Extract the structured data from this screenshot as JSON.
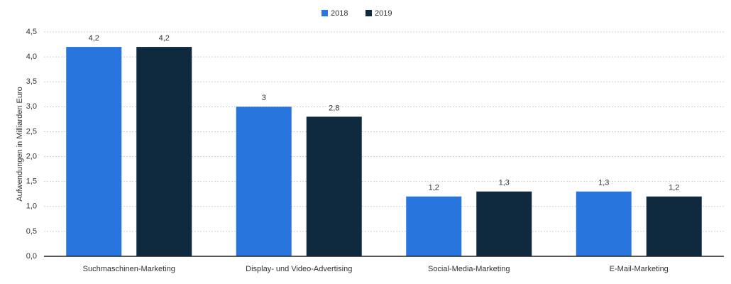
{
  "chart_data": {
    "type": "bar",
    "y_label": "Aufwendungen in Milliarden Euro",
    "categories": [
      "Suchmaschinen-Marketing",
      "Display- und Video-Advertising",
      "Social-Media-Marketing",
      "E-Mail-Marketing"
    ],
    "series": [
      {
        "name": "2018",
        "color": "#2876dd",
        "values": [
          4.2,
          3,
          1.2,
          1.3
        ],
        "value_labels": [
          "4,2",
          "3",
          "1,2",
          "1,3"
        ]
      },
      {
        "name": "2019",
        "color": "#0f2a3f",
        "values": [
          4.2,
          2.8,
          1.3,
          1.2
        ],
        "value_labels": [
          "4,2",
          "2,8",
          "1,3",
          "1,2"
        ]
      }
    ],
    "ylim": [
      0,
      4.5
    ],
    "yticks": [
      {
        "value": 0,
        "label": "0,0"
      },
      {
        "value": 0.5,
        "label": "0,5"
      },
      {
        "value": 1,
        "label": "1,0"
      },
      {
        "value": 1.5,
        "label": "1,5"
      },
      {
        "value": 2,
        "label": "2,0"
      },
      {
        "value": 2.5,
        "label": "2,5"
      },
      {
        "value": 3,
        "label": "3,0"
      },
      {
        "value": 3.5,
        "label": "3,5"
      },
      {
        "value": 4,
        "label": "4,0"
      },
      {
        "value": 4.5,
        "label": "4,5"
      }
    ],
    "grid": true,
    "legend": "top"
  }
}
